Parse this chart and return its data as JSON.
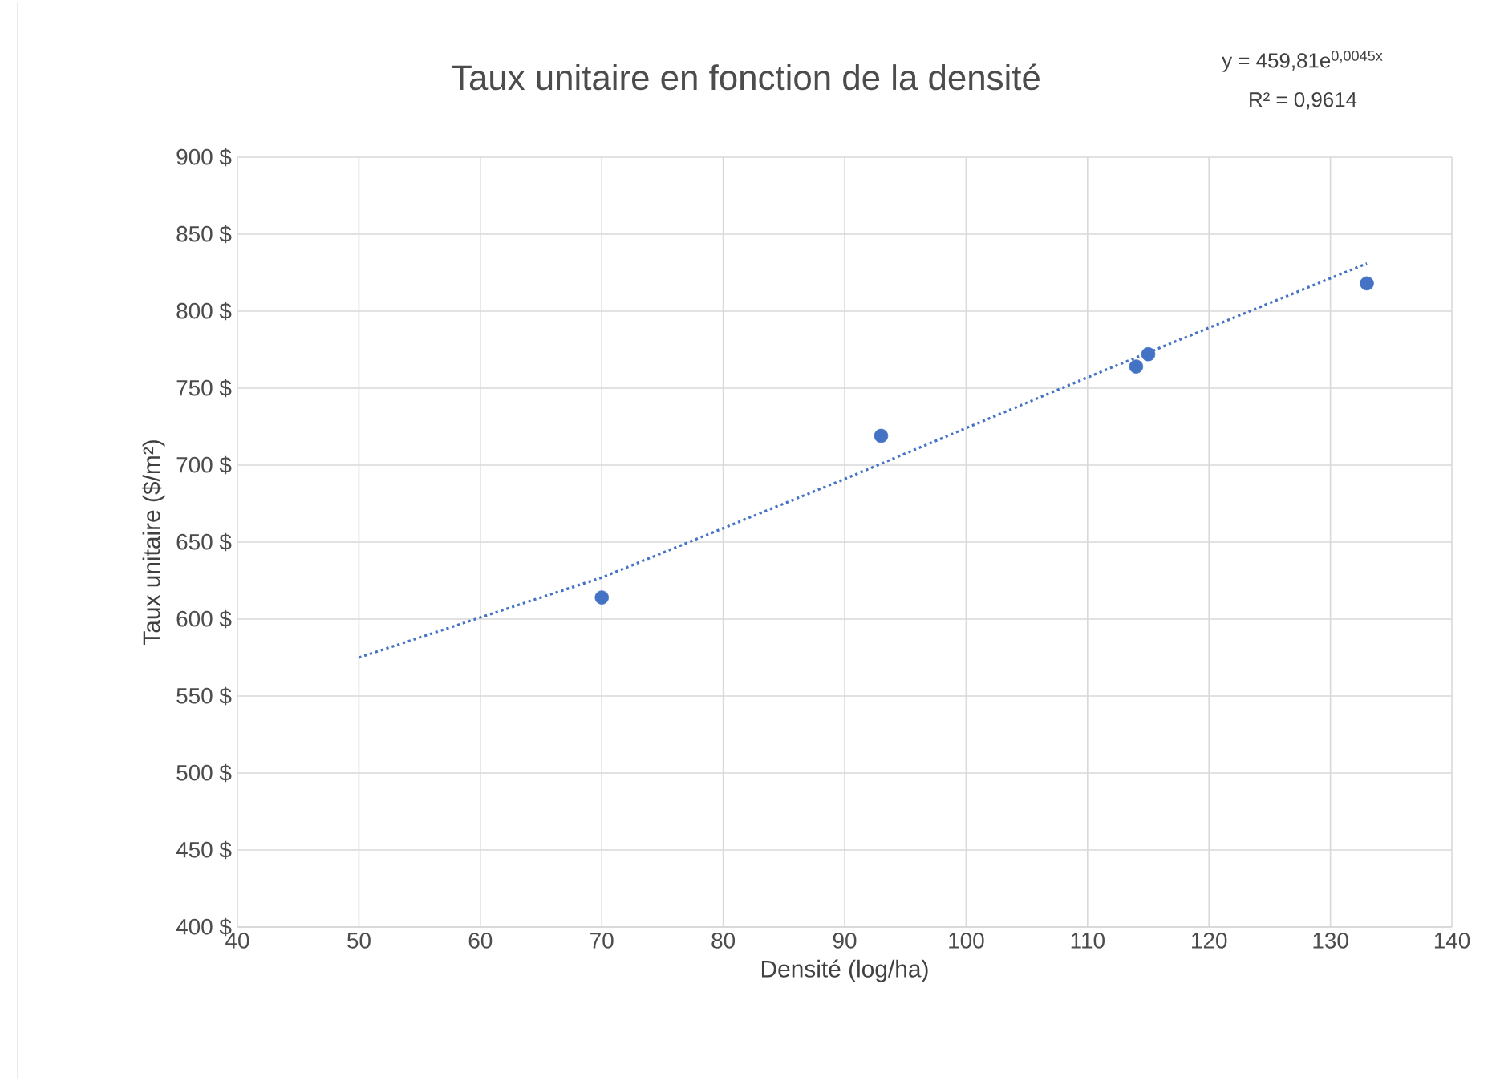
{
  "chart_data": {
    "type": "scatter",
    "title": "Taux unitaire en fonction de la densité",
    "xlabel": "Densité (log/ha)",
    "ylabel": "Taux unitaire ($/m²)",
    "series": [
      {
        "type": "scatter",
        "color": "#4472c4",
        "marker": "circle",
        "x": [
          70,
          93,
          114,
          115,
          133
        ],
        "values": [
          614,
          719,
          764,
          772,
          818
        ]
      },
      {
        "type": "line",
        "color": "#4472c4",
        "line_style": "dotted",
        "marker": "none",
        "x": [
          50,
          70,
          90,
          110,
          133
        ],
        "values": [
          575,
          627,
          691,
          757,
          831
        ]
      }
    ],
    "annotations": [
      "y = 459,81e$^{0,0045x}$",
      "R² = 0,9614"
    ],
    "xlim": [
      40,
      140
    ],
    "xticks": [
      40,
      50,
      60,
      70,
      80,
      90,
      100,
      110,
      120,
      130,
      140
    ],
    "ylim": [
      400,
      900
    ],
    "yticks": [
      {
        "value": 400,
        "label": "400 $"
      },
      {
        "value": 450,
        "label": "450 $"
      },
      {
        "value": 500,
        "label": "500 $"
      },
      {
        "value": 550,
        "label": "550 $"
      },
      {
        "value": 600,
        "label": "600 $"
      },
      {
        "value": 650,
        "label": "650 $"
      },
      {
        "value": 700,
        "label": "700 $"
      },
      {
        "value": 750,
        "label": "750 $"
      },
      {
        "value": 800,
        "label": "800 $"
      },
      {
        "value": 850,
        "label": "850 $"
      },
      {
        "value": 900,
        "label": "900 $"
      }
    ],
    "grid": true
  }
}
